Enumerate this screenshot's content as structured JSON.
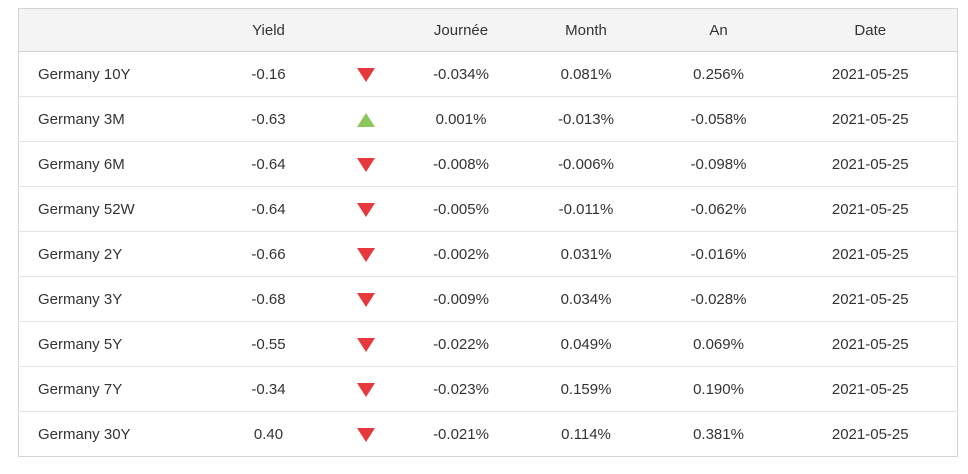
{
  "table": {
    "headers": {
      "name": "",
      "yield": "Yield",
      "day": "Journée",
      "month": "Month",
      "year": "An",
      "date": "Date"
    },
    "rows": [
      {
        "name": "Germany 10Y",
        "yield": "-0.16",
        "direction": "down",
        "day": "-0.034%",
        "month": "0.081%",
        "year": "0.256%",
        "date": "2021-05-25"
      },
      {
        "name": "Germany 3M",
        "yield": "-0.63",
        "direction": "up",
        "day": "0.001%",
        "month": "-0.013%",
        "year": "-0.058%",
        "date": "2021-05-25"
      },
      {
        "name": "Germany 6M",
        "yield": "-0.64",
        "direction": "down",
        "day": "-0.008%",
        "month": "-0.006%",
        "year": "-0.098%",
        "date": "2021-05-25"
      },
      {
        "name": "Germany 52W",
        "yield": "-0.64",
        "direction": "down",
        "day": "-0.005%",
        "month": "-0.011%",
        "year": "-0.062%",
        "date": "2021-05-25"
      },
      {
        "name": "Germany 2Y",
        "yield": "-0.66",
        "direction": "down",
        "day": "-0.002%",
        "month": "0.031%",
        "year": "-0.016%",
        "date": "2021-05-25"
      },
      {
        "name": "Germany 3Y",
        "yield": "-0.68",
        "direction": "down",
        "day": "-0.009%",
        "month": "0.034%",
        "year": "-0.028%",
        "date": "2021-05-25"
      },
      {
        "name": "Germany 5Y",
        "yield": "-0.55",
        "direction": "down",
        "day": "-0.022%",
        "month": "0.049%",
        "year": "0.069%",
        "date": "2021-05-25"
      },
      {
        "name": "Germany 7Y",
        "yield": "-0.34",
        "direction": "down",
        "day": "-0.023%",
        "month": "0.159%",
        "year": "0.190%",
        "date": "2021-05-25"
      },
      {
        "name": "Germany 30Y",
        "yield": "0.40",
        "direction": "down",
        "day": "-0.021%",
        "month": "0.114%",
        "year": "0.381%",
        "date": "2021-05-25"
      }
    ]
  },
  "colors": {
    "up_arrow": "#8dc75c",
    "down_arrow": "#e6393d"
  }
}
